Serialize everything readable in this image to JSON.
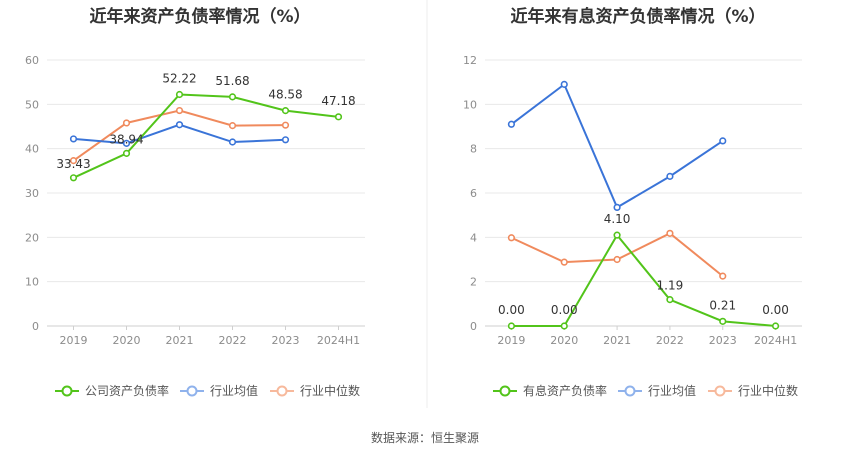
{
  "source_label": "数据来源：恒生聚源",
  "chart_data": [
    {
      "type": "line",
      "title": "近年来资产负债率情况（%）",
      "categories": [
        "2019",
        "2020",
        "2021",
        "2022",
        "2023",
        "2024H1"
      ],
      "ylim": [
        0,
        60
      ],
      "yticks": [
        0,
        10,
        20,
        30,
        40,
        50,
        60
      ],
      "grid": true,
      "legend_position": "bottom",
      "series": [
        {
          "name": "公司资产负债率",
          "color": "#52c41a",
          "values": [
            33.43,
            38.94,
            52.22,
            51.68,
            48.58,
            47.18
          ],
          "labels": [
            "33.43",
            "38.94",
            "52.22",
            "51.68",
            "48.58",
            "47.18"
          ]
        },
        {
          "name": "行业均值",
          "color": "#3a74d8",
          "values": [
            42.2,
            41.2,
            45.4,
            41.5,
            42.0,
            null
          ]
        },
        {
          "name": "行业中位数",
          "color": "#f08a5d",
          "values": [
            37.3,
            45.8,
            48.6,
            45.2,
            45.3,
            null
          ]
        }
      ]
    },
    {
      "type": "line",
      "title": "近年来有息资产负债率情况（%）",
      "categories": [
        "2019",
        "2020",
        "2021",
        "2022",
        "2023",
        "2024H1"
      ],
      "ylim": [
        0,
        12
      ],
      "yticks": [
        0,
        2,
        4,
        6,
        8,
        10,
        12
      ],
      "grid": true,
      "legend_position": "bottom",
      "series": [
        {
          "name": "有息资产负债率",
          "color": "#52c41a",
          "values": [
            0.0,
            0.0,
            4.1,
            1.19,
            0.21,
            0.0
          ],
          "labels": [
            "0.00",
            "0.00",
            "4.10",
            "1.19",
            "0.21",
            "0.00"
          ]
        },
        {
          "name": "行业均值",
          "color": "#3a74d8",
          "values": [
            9.1,
            10.9,
            5.35,
            6.75,
            8.35,
            null
          ]
        },
        {
          "name": "行业中位数",
          "color": "#f08a5d",
          "values": [
            3.98,
            2.88,
            3.0,
            4.18,
            2.25,
            null
          ]
        }
      ]
    }
  ]
}
